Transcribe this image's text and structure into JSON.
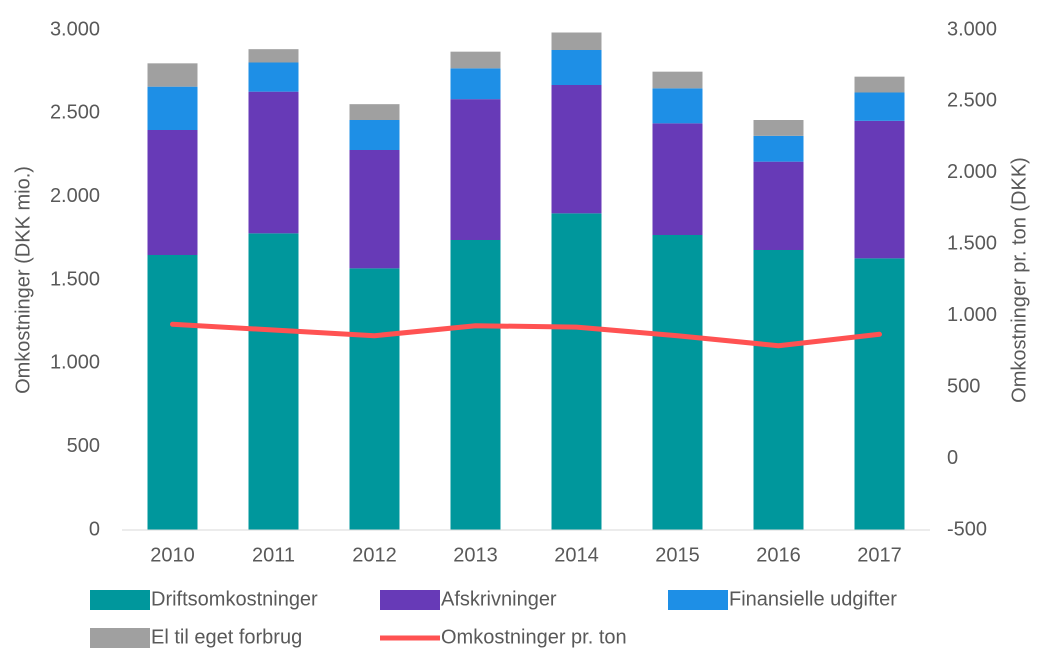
{
  "chart_data": {
    "type": "bar",
    "stacked": true,
    "ylabel": "Omkostninger (DKK mio.)",
    "y2label": "Omkostninger pr. ton (DKK)",
    "categories": [
      "2010",
      "2011",
      "2012",
      "2013",
      "2014",
      "2015",
      "2016",
      "2017"
    ],
    "series": [
      {
        "name": "Driftsomkostninger",
        "color": "#00979c",
        "values": [
          1650,
          1780,
          1570,
          1740,
          1900,
          1770,
          1680,
          1630
        ]
      },
      {
        "name": "Afskrivninger",
        "color": "#673ab7",
        "values": [
          750,
          850,
          710,
          845,
          770,
          670,
          530,
          825
        ]
      },
      {
        "name": "Finansielle udgifter",
        "color": "#1e8fe6",
        "values": [
          260,
          175,
          180,
          185,
          210,
          210,
          155,
          170
        ]
      },
      {
        "name": "El til eget forbrug",
        "color": "#a0a0a0",
        "values": [
          140,
          80,
          95,
          100,
          105,
          100,
          95,
          95
        ]
      },
      {
        "name": "Omkostninger pr. ton",
        "color": "#ff5252",
        "type": "line",
        "axis": "y2",
        "values": [
          940,
          900,
          860,
          930,
          920,
          860,
          790,
          870
        ]
      }
    ],
    "ylim": [
      0,
      3000
    ],
    "yticks": [
      0,
      500,
      {
        "value": 1000,
        "label": "1.000"
      },
      {
        "value": 1500,
        "label": "1.500"
      },
      {
        "value": 2000,
        "label": "2.000"
      },
      {
        "value": 2500,
        "label": "2.500"
      },
      {
        "value": 3000,
        "label": "3.000"
      }
    ],
    "y2lim": [
      -500,
      3000
    ],
    "y2ticks": [
      -500,
      0,
      500,
      {
        "value": 1000,
        "label": "1.000"
      },
      {
        "value": 1500,
        "label": "1.500"
      },
      {
        "value": 2000,
        "label": "2.000"
      },
      {
        "value": 2500,
        "label": "2.500"
      },
      {
        "value": 3000,
        "label": "3.000"
      }
    ],
    "legend": "bottom"
  }
}
